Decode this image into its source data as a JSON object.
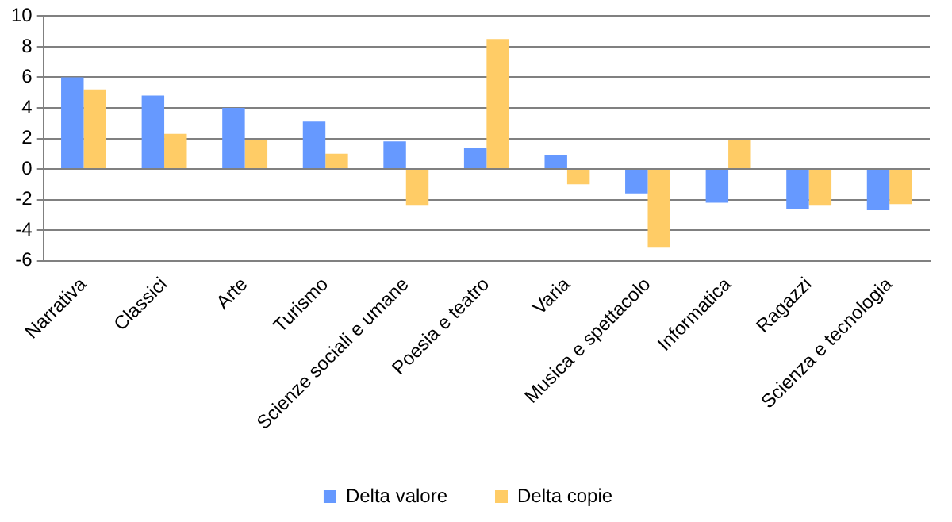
{
  "chart_data": {
    "type": "bar",
    "categories": [
      "Narrativa",
      "Classici",
      "Arte",
      "Turismo",
      "Scienze sociali e umane",
      "Poesia e teatro",
      "Varia",
      "Musica e spettacolo",
      "Informatica",
      "Ragazzi",
      "Scienza e tecnologia"
    ],
    "series": [
      {
        "name": "Delta valore",
        "color": "#6699ff",
        "values": [
          6.0,
          4.8,
          4.0,
          3.1,
          1.8,
          1.4,
          0.9,
          -1.6,
          -2.2,
          -2.6,
          -2.7
        ]
      },
      {
        "name": "Delta copie",
        "color": "#ffcc66",
        "values": [
          5.2,
          2.3,
          1.9,
          1.0,
          -2.4,
          8.5,
          -1.0,
          -5.1,
          1.9,
          -2.4,
          -2.3
        ]
      }
    ],
    "ylim": [
      -6,
      10
    ],
    "yticks": [
      -6,
      -4,
      -2,
      0,
      2,
      4,
      6,
      8,
      10
    ],
    "grid": "y",
    "legend": "bottom"
  }
}
